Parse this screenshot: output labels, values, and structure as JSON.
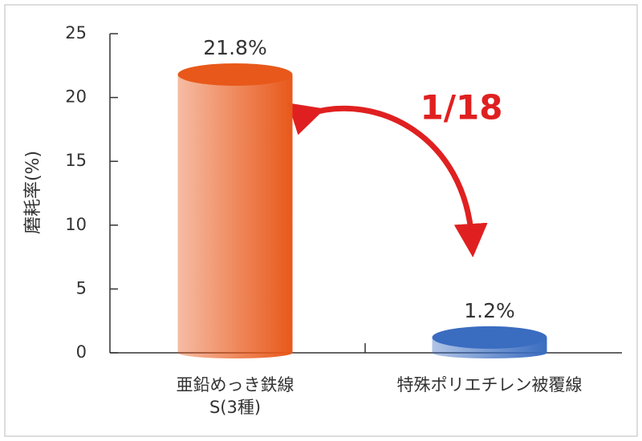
{
  "chart_data": {
    "type": "bar",
    "ylabel": "磨耗率(%)",
    "categories": [
      "亜鉛めっき鉄線\nS(3種)",
      "特殊ポリエチレン被覆線"
    ],
    "values": [
      21.8,
      1.2
    ],
    "value_labels": [
      "21.8%",
      "1.2%"
    ],
    "colors": [
      "#e8581a",
      "#3a6cc0"
    ],
    "ylim": [
      0,
      25
    ],
    "yticks": [
      0,
      5,
      10,
      15,
      20,
      25
    ],
    "annotation": "1/18"
  }
}
